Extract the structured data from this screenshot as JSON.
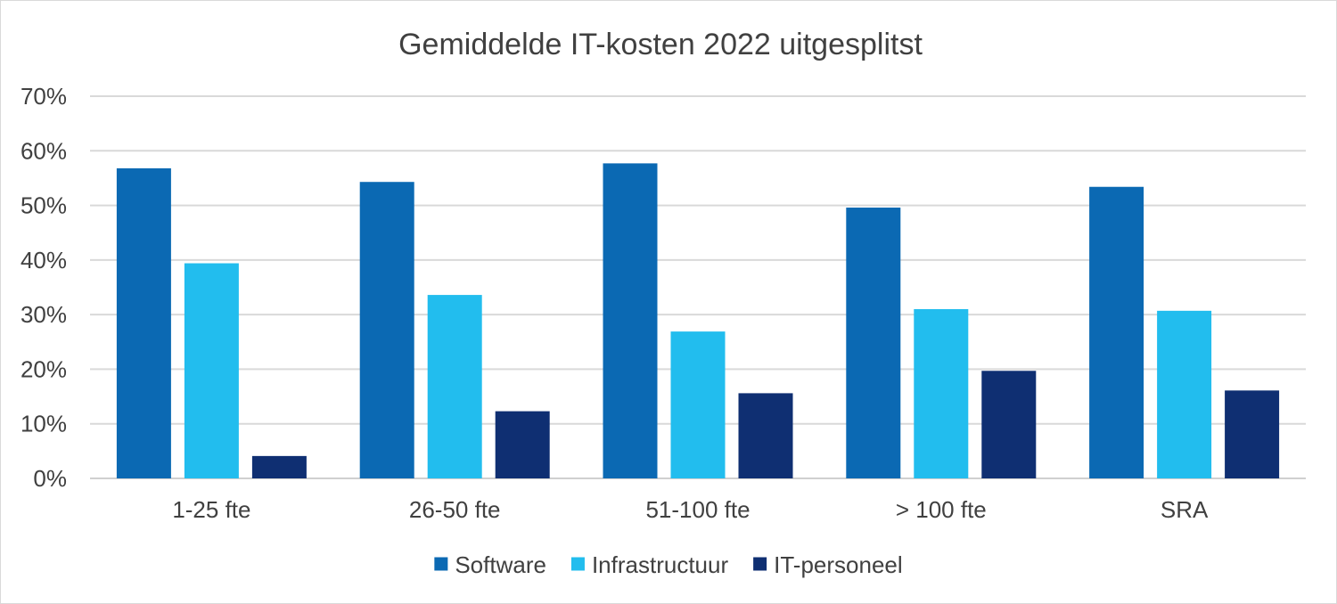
{
  "chart_data": {
    "type": "bar",
    "title": "Gemiddelde IT-kosten 2022 uitgesplitst",
    "xlabel": "",
    "ylabel": "",
    "ylim": [
      0,
      70
    ],
    "yticks": [
      "0%",
      "10%",
      "20%",
      "30%",
      "40%",
      "50%",
      "60%",
      "70%"
    ],
    "categories": [
      "1-25 fte",
      "26-50 fte",
      "51-100 fte",
      "> 100 fte",
      "SRA"
    ],
    "series": [
      {
        "name": "Software",
        "color": "#0b69b3",
        "values": [
          56.8,
          54.3,
          57.7,
          49.6,
          53.4
        ]
      },
      {
        "name": "Infrastructuur",
        "color": "#22bdee",
        "values": [
          39.4,
          33.6,
          26.9,
          31.0,
          30.7
        ]
      },
      {
        "name": "IT-personeel",
        "color": "#0f2f72",
        "values": [
          4.1,
          12.3,
          15.6,
          19.7,
          16.1
        ]
      }
    ],
    "grid": true,
    "legend": "bottom"
  }
}
